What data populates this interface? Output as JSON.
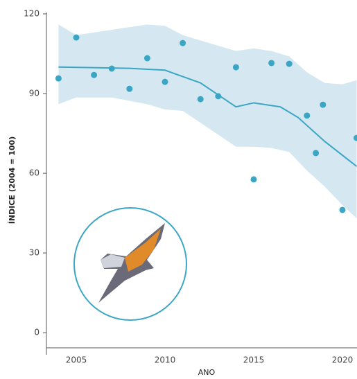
{
  "chart_data": {
    "type": "scatter",
    "ylabel": "ÍNDICE (2004 = 100)",
    "xlabel": "ANO",
    "xlim": [
      2003.32,
      2020.82
    ],
    "ylim": [
      -5.7,
      120
    ],
    "xticks": [
      2005,
      2010,
      2015,
      2020
    ],
    "yticks": [
      0,
      30,
      60,
      90,
      120
    ],
    "series": [
      {
        "type": "band",
        "color": "#d5e8f1",
        "x": [
          2004,
          2005,
          2007,
          2009,
          2010,
          2011,
          2012,
          2014,
          2015,
          2016,
          2017,
          2018,
          2019,
          2020,
          2020.8
        ],
        "upper": [
          116,
          112,
          114,
          116,
          115.5,
          112,
          110,
          106,
          107,
          106,
          104,
          98,
          94,
          93.5,
          95
        ],
        "lower": [
          86,
          88.5,
          88.5,
          86,
          84,
          83.5,
          79,
          70,
          70,
          69.5,
          68,
          61,
          55,
          48,
          43
        ]
      },
      {
        "type": "line",
        "color": "#3aa6c4",
        "x": [
          2004,
          2008,
          2010,
          2012,
          2014,
          2015,
          2016.5,
          2017.5,
          2019,
          2020.8
        ],
        "values": [
          100,
          99.5,
          98.8,
          94,
          85,
          86.5,
          85,
          81,
          72,
          62.6
        ]
      },
      {
        "type": "scatter",
        "color": "#3aa6c4",
        "x": [
          2004,
          2005,
          2006,
          2007,
          2008,
          2009,
          2010,
          2011,
          2012,
          2013,
          2014,
          2015,
          2016,
          2017,
          2018,
          2018.5,
          2018.9,
          2020,
          2020.8
        ],
        "values": [
          95.7,
          111.1,
          97,
          99.4,
          91.8,
          103.3,
          94.4,
          109,
          87.9,
          89,
          99.9,
          57.7,
          101.5,
          101.2,
          81.7,
          67.6,
          85.8,
          46.2,
          73.3
        ]
      }
    ]
  }
}
